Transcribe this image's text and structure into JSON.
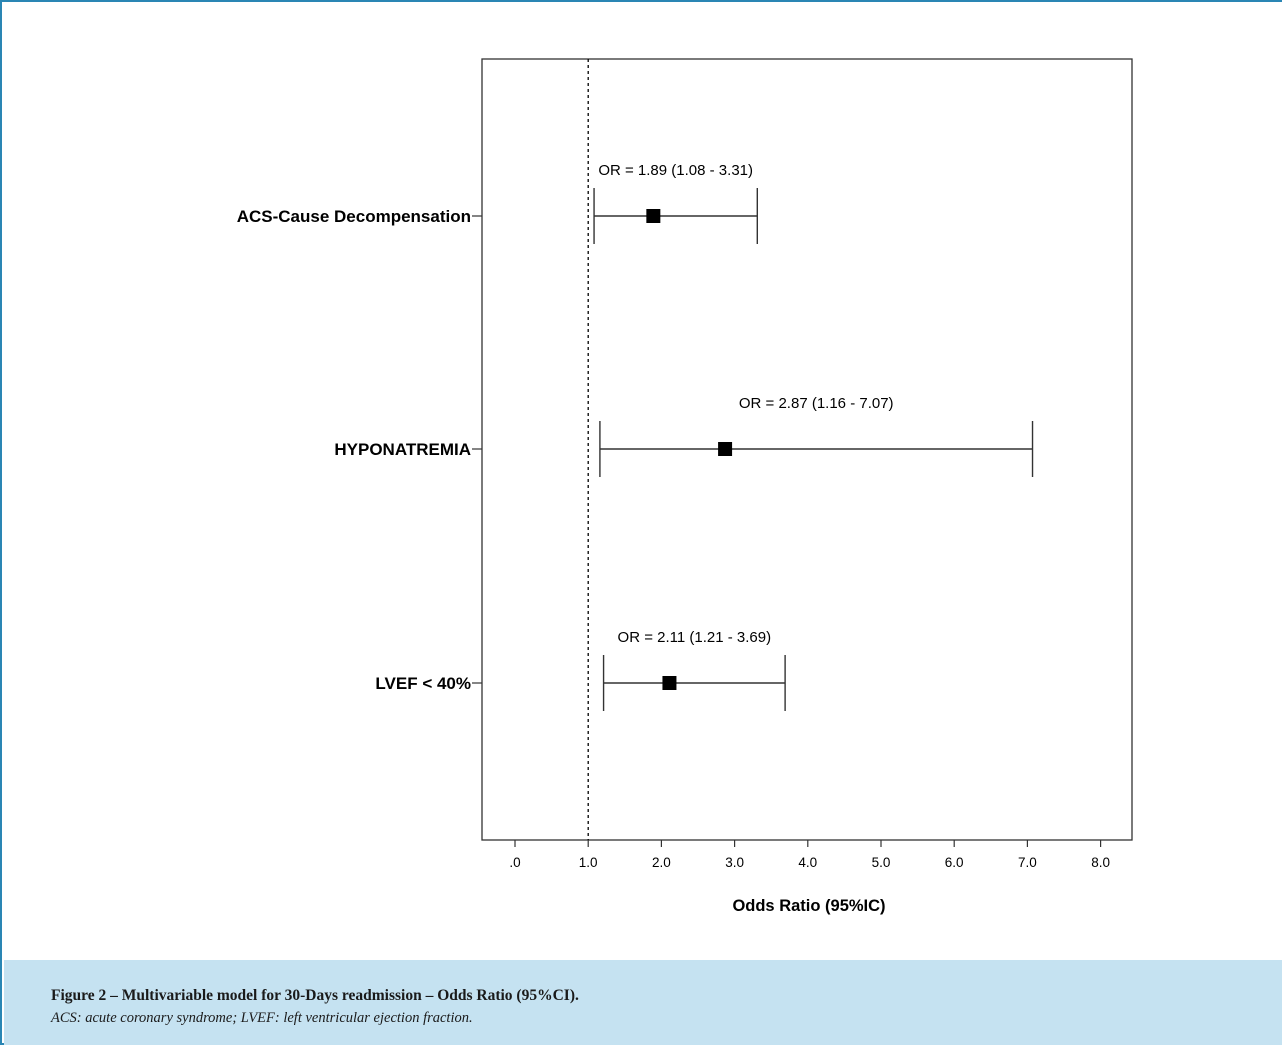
{
  "chart_data": {
    "type": "forest",
    "xlabel": "Odds Ratio (95%IC)",
    "xlim": [
      0,
      8.4
    ],
    "reference_line": 1.0,
    "ticks": [
      {
        "value": 0,
        "label": ".0"
      },
      {
        "value": 1,
        "label": "1.0"
      },
      {
        "value": 2,
        "label": "2.0"
      },
      {
        "value": 3,
        "label": "3.0"
      },
      {
        "value": 4,
        "label": "4.0"
      },
      {
        "value": 5,
        "label": "5.0"
      },
      {
        "value": 6,
        "label": "6.0"
      },
      {
        "value": 7,
        "label": "7.0"
      },
      {
        "value": 8,
        "label": "8.0"
      }
    ],
    "rows": [
      {
        "category": "ACS-Cause Decompensation",
        "or": 1.89,
        "lower": 1.08,
        "upper": 3.31,
        "annotation": "OR = 1.89 (1.08 - 3.31)"
      },
      {
        "category": "HYPONATREMIA",
        "or": 2.87,
        "lower": 1.16,
        "upper": 7.07,
        "annotation": "OR = 2.87 (1.16 - 7.07)"
      },
      {
        "category": "LVEF < 40%",
        "or": 2.11,
        "lower": 1.21,
        "upper": 3.69,
        "annotation": "OR = 2.11 (1.21 - 3.69)"
      }
    ]
  },
  "caption": {
    "title": "Figure 2 – Multivariable model for 30-Days readmission – Odds Ratio (95%CI).",
    "note": "ACS: acute coronary syndrome; LVEF: left ventricular ejection fraction."
  },
  "colors": {
    "frame_border": "#2a86b4",
    "caption_background": "#c5e2f1",
    "marker": "#000000"
  }
}
